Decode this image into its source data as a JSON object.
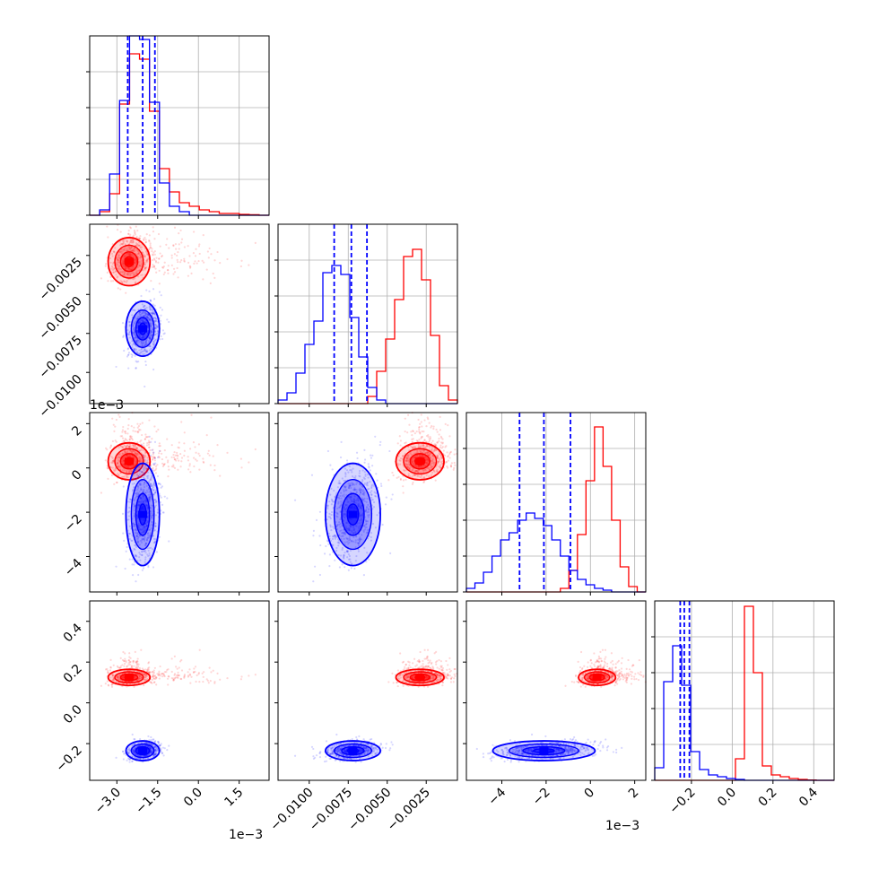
{
  "chart_data": {
    "type": "corner",
    "colors": {
      "A": "#ff0000",
      "B": "#0000ff"
    },
    "quantile_lines": {
      "color": "#0000ff",
      "style": "dashed",
      "series": "B",
      "quantiles": [
        0.16,
        0.5,
        0.84
      ]
    },
    "params": [
      {
        "range": [
          -4.0,
          2.6
        ],
        "ticks": [
          -3.0,
          -1.5,
          0.0,
          1.5
        ],
        "tick_labels": [
          "−3.0",
          "−1.5",
          "0.0",
          "1.5"
        ],
        "offset_label": "1e−3",
        "quantiles": [
          -2.6,
          -2.05,
          -1.6
        ],
        "hist": {
          "A": [
            0,
            0.02,
            0.12,
            0.62,
            0.9,
            0.87,
            0.58,
            0.26,
            0.13,
            0.07,
            0.05,
            0.03,
            0.02,
            0.01,
            0.01,
            0.005,
            0.003,
            0
          ],
          "B": [
            0,
            0.03,
            0.23,
            0.64,
            1.0,
            0.98,
            0.63,
            0.18,
            0.05,
            0.02,
            0,
            0,
            0,
            0,
            0,
            0,
            0,
            0
          ]
        },
        "hist_range": [
          -4.0,
          2.6
        ]
      },
      {
        "range": [
          -0.012,
          -0.0005
        ],
        "ticks": [
          -0.01,
          -0.0075,
          -0.005,
          -0.0025
        ],
        "tick_labels": [
          "−0.0100",
          "−0.0075",
          "−0.0050",
          "−0.0025"
        ],
        "quantiles": [
          -0.0084,
          -0.0073,
          -0.0063
        ],
        "hist": {
          "A": [
            0,
            0,
            0,
            0,
            0,
            0,
            0,
            0,
            0,
            0,
            0.04,
            0.18,
            0.36,
            0.58,
            0.82,
            0.86,
            0.69,
            0.38,
            0.1,
            0.02
          ],
          "B": [
            0.02,
            0.06,
            0.17,
            0.33,
            0.46,
            0.73,
            0.77,
            0.72,
            0.48,
            0.26,
            0.09,
            0.02,
            0,
            0,
            0,
            0,
            0,
            0,
            0,
            0
          ]
        },
        "hist_range": [
          -0.012,
          -0.0005
        ]
      },
      {
        "range": [
          -5.6,
          2.5
        ],
        "ticks": [
          -4,
          -2,
          0,
          2
        ],
        "tick_labels": [
          "−4",
          "−2",
          "0",
          "2"
        ],
        "offset_label": "1e−3",
        "quantiles": [
          -3.2,
          -2.1,
          -0.9
        ],
        "hist": {
          "A": [
            0,
            0,
            0,
            0,
            0,
            0,
            0,
            0,
            0,
            0,
            0,
            0.02,
            0.12,
            0.32,
            0.62,
            0.92,
            0.7,
            0.4,
            0.14,
            0.03,
            0
          ],
          "B": [
            0.02,
            0.05,
            0.11,
            0.2,
            0.29,
            0.33,
            0.4,
            0.44,
            0.41,
            0.37,
            0.29,
            0.2,
            0.12,
            0.07,
            0.04,
            0.02,
            0.01,
            0,
            0,
            0,
            0
          ]
        },
        "hist_range": [
          -5.6,
          2.5
        ]
      },
      {
        "range": [
          -0.38,
          0.5
        ],
        "ticks": [
          -0.2,
          0.0,
          0.2,
          0.4
        ],
        "tick_labels": [
          "−0.2",
          "0.0",
          "0.2",
          "0.4"
        ],
        "quantiles": [
          -0.255,
          -0.235,
          -0.21
        ],
        "hist": {
          "A": [
            0,
            0,
            0,
            0,
            0,
            0,
            0,
            0,
            0,
            0.12,
            0.97,
            0.6,
            0.08,
            0.03,
            0.02,
            0.01,
            0.005,
            0.002,
            0,
            0
          ],
          "B": [
            0.07,
            0.55,
            0.75,
            0.53,
            0.16,
            0.06,
            0.03,
            0.02,
            0.01,
            0.005,
            0,
            0,
            0,
            0,
            0,
            0,
            0,
            0,
            0,
            0
          ]
        },
        "hist_range": [
          -0.38,
          0.5
        ]
      }
    ],
    "blobs": {
      "A": {
        "mean": [
          -2.55,
          -0.0029,
          0.3,
          0.125
        ],
        "sd": [
          0.35,
          0.0007,
          0.38,
          0.018
        ],
        "tail": [
          1.6,
          0.0011,
          0.9,
          0.045
        ]
      },
      "B": {
        "mean": [
          -2.05,
          -0.0072,
          -2.1,
          -0.235
        ],
        "sd": [
          0.28,
          0.0008,
          1.05,
          0.022
        ],
        "tail": [
          0.15,
          0.0004,
          0.3,
          0.01
        ]
      }
    },
    "ylabel_params": [
      1,
      2,
      3
    ]
  }
}
